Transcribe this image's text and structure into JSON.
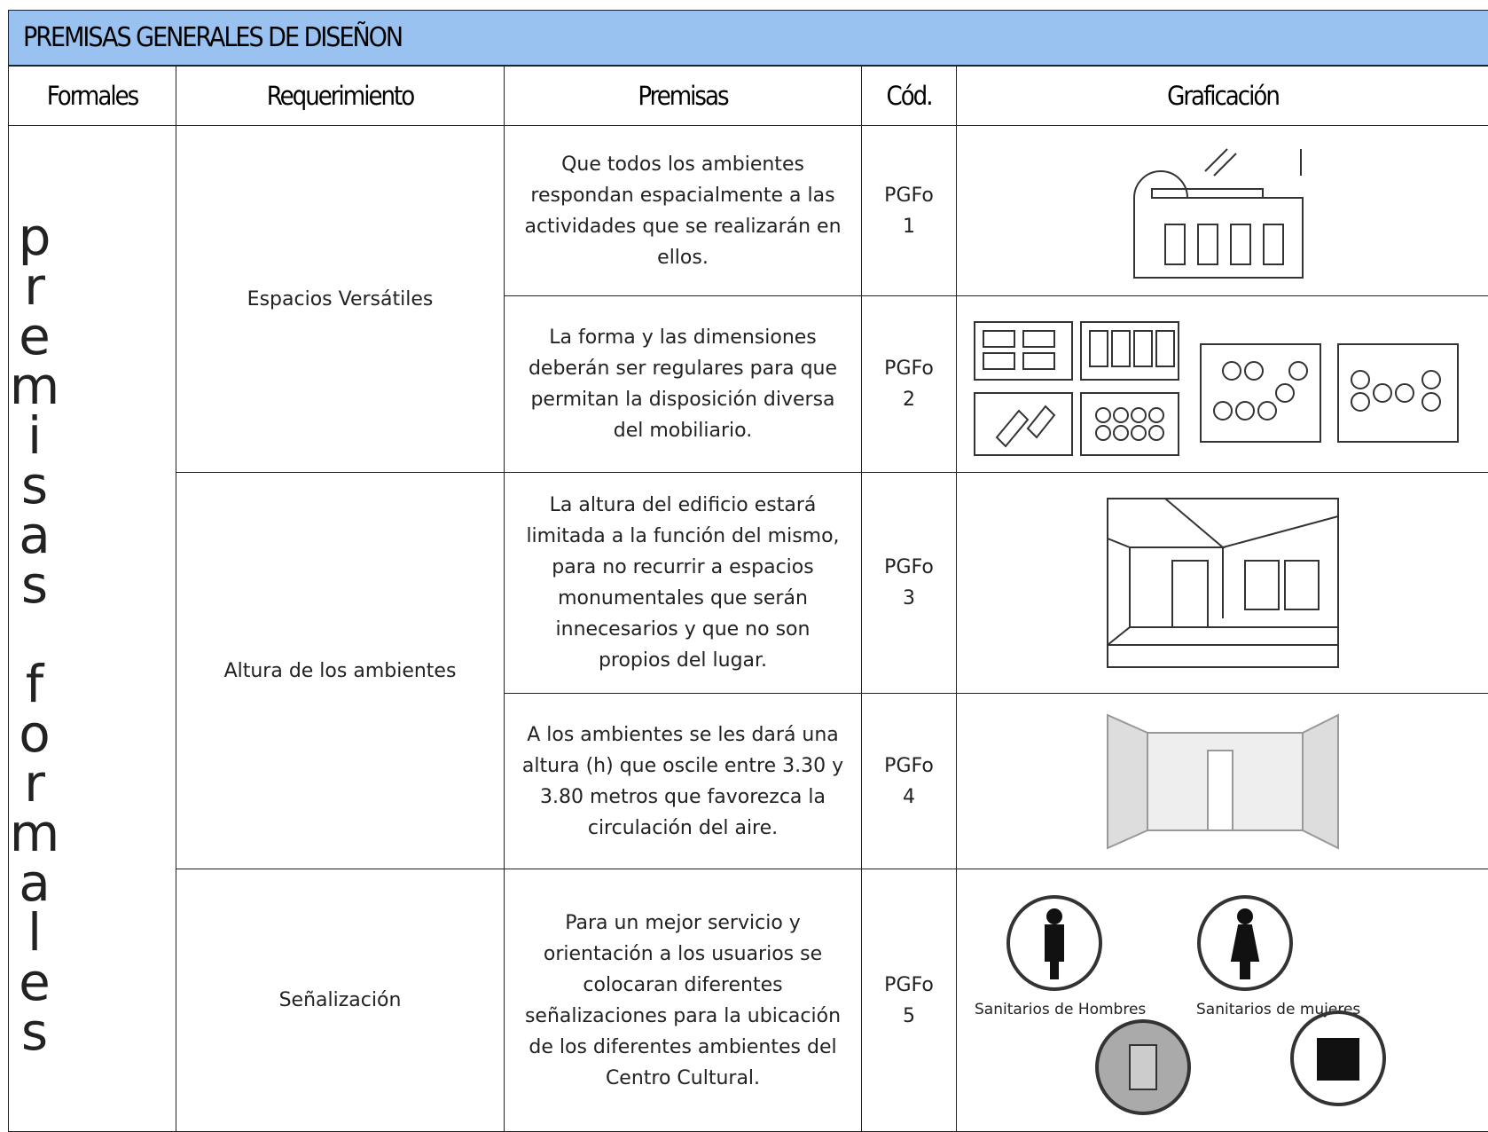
{
  "header": {
    "title": "PREMISAS GENERALES DE DISEÑON"
  },
  "table": {
    "columns": [
      "Formales",
      "Requerimiento",
      "Premisas",
      "Cód.",
      "Graficación"
    ],
    "group": "premisas formales",
    "rows": [
      {
        "requirement": "Espacios Versátiles",
        "premise": "Que todos los ambientes respondan espacialmente a las actividades que se realizarán en ellos.",
        "code": "PGFo 1"
      },
      {
        "premise": "La forma y las dimensiones deberán ser regulares para que permitan la disposición diversa del mobiliario.",
        "code": "PGFo 2"
      },
      {
        "requirement": "Altura de los ambientes",
        "premise": "La altura del edificio estará limitada a la función del mismo, para no recurrir a espacios monumentales que serán innecesarios y que no son propios del lugar.",
        "code": "PGFo 3"
      },
      {
        "premise": "A los ambientes se les dará una altura (h) que oscile entre 3.30 y 3.80 metros que favorezca la circulación del aire.",
        "code": "PGFo 4"
      },
      {
        "requirement": "Señalización",
        "premise": "Para un mejor servicio y orientación a los usuarios se colocaran diferentes señalizaciones para la ubicación de los diferentes ambientes del Centro Cultural.",
        "code": "PGFo 5",
        "icons": [
          "Sanitarios de Hombres",
          "Sanitarios de mujeres"
        ]
      }
    ]
  }
}
